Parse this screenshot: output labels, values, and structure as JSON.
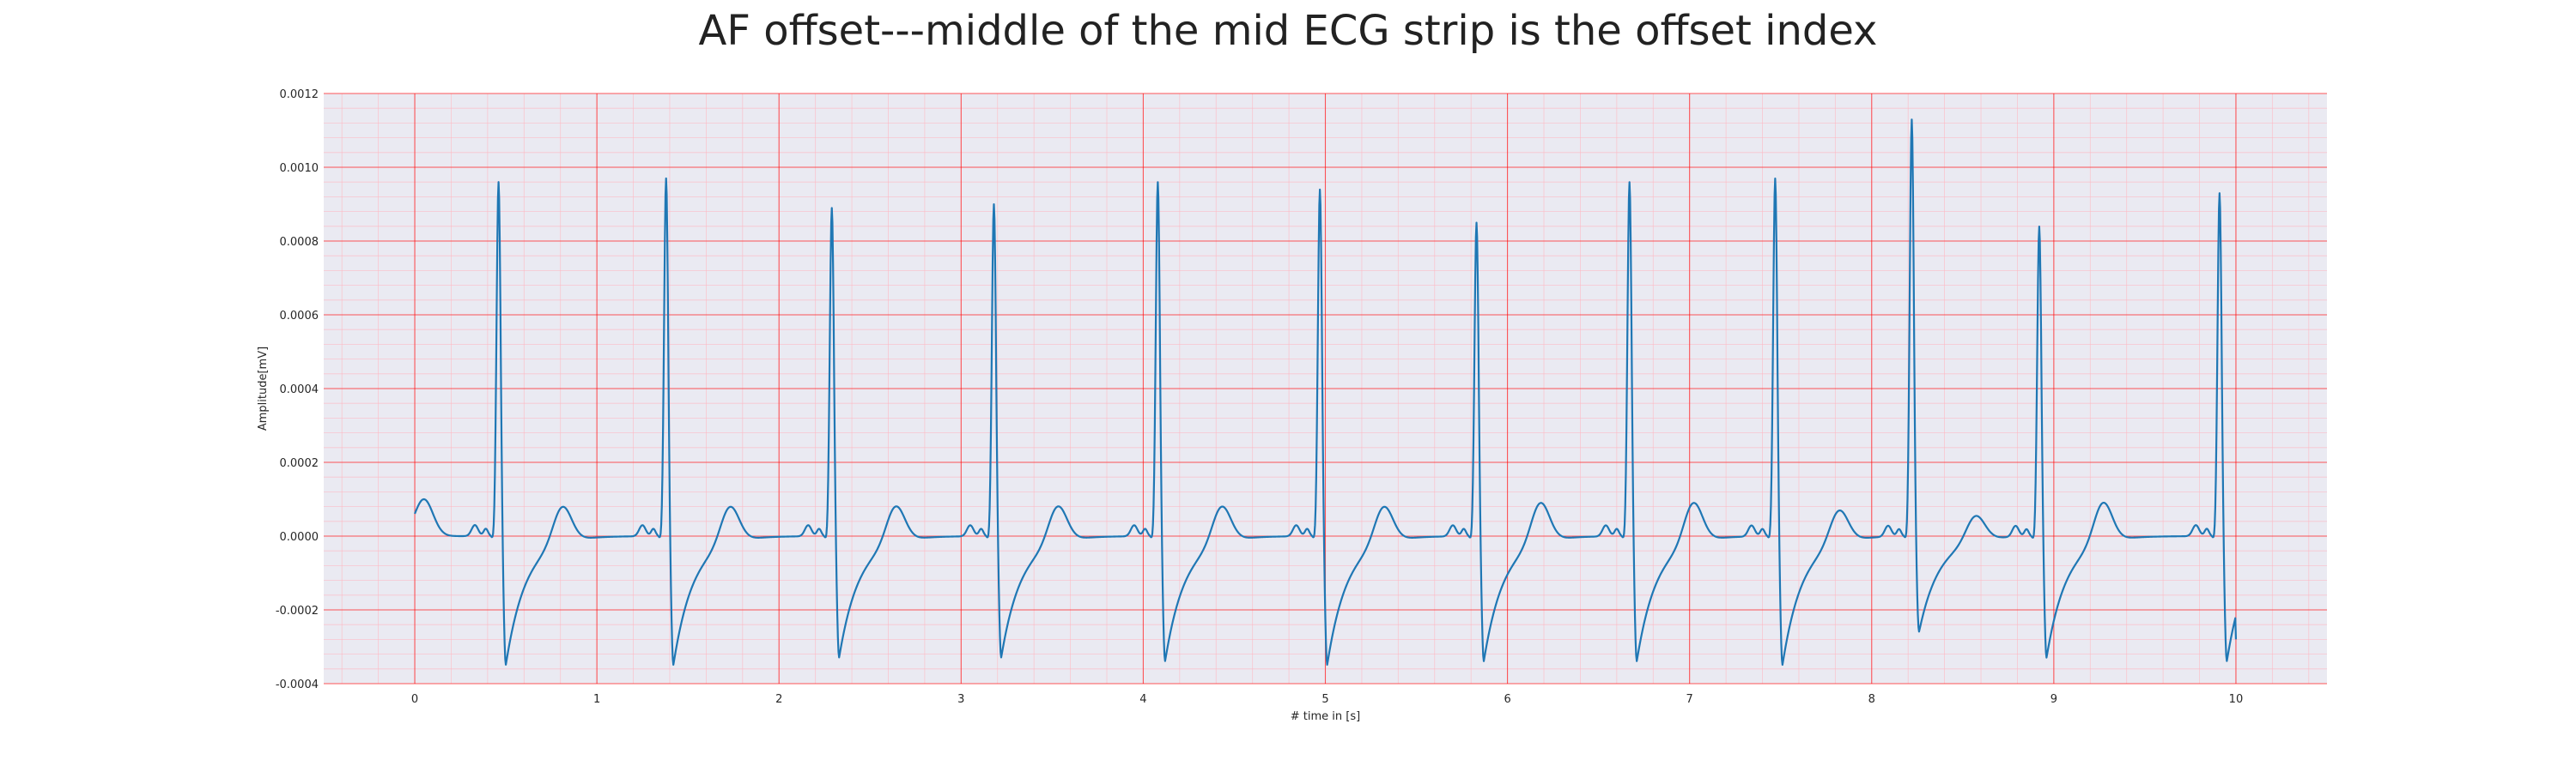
{
  "chart_data": {
    "type": "line",
    "title": "AF offset---middle of the mid ECG strip is the offset index",
    "xlabel": "# time in [s]",
    "ylabel": "Amplitude[mV]",
    "xlim": [
      -0.5,
      10.5
    ],
    "ylim": [
      -0.0004,
      0.0012
    ],
    "x_ticks": [
      0,
      1,
      2,
      3,
      4,
      5,
      6,
      7,
      8,
      9,
      10
    ],
    "x_tick_labels": [
      "0",
      "1",
      "2",
      "3",
      "4",
      "5",
      "6",
      "7",
      "8",
      "9",
      "10"
    ],
    "y_ticks": [
      -0.0004,
      -0.0002,
      0.0,
      0.0002,
      0.0004,
      0.0006,
      0.0008,
      0.001,
      0.0012
    ],
    "y_tick_labels": [
      "-0.0004",
      "-0.0002",
      "0.0000",
      "0.0002",
      "0.0004",
      "0.0006",
      "0.0008",
      "0.0010",
      "0.0012"
    ],
    "grid": "major and minor",
    "background_color": "#eaeaf2",
    "major_grid_color": "#ff0000",
    "minor_grid_color": "#ffb6c1",
    "line_color": "#1f77b4",
    "x_start": 0,
    "x_end": 10,
    "beats": [
      {
        "r_time": 0.46,
        "r_amp": 0.00096,
        "s_amp": -0.00035,
        "t_amp": 0.0001
      },
      {
        "r_time": 1.38,
        "r_amp": 0.00097,
        "s_amp": -0.00035,
        "t_amp": 0.0001
      },
      {
        "r_time": 2.29,
        "r_amp": 0.00089,
        "s_amp": -0.00033,
        "t_amp": 0.0001
      },
      {
        "r_time": 3.18,
        "r_amp": 0.0009,
        "s_amp": -0.00033,
        "t_amp": 0.0001
      },
      {
        "r_time": 4.08,
        "r_amp": 0.00096,
        "s_amp": -0.00034,
        "t_amp": 0.0001
      },
      {
        "r_time": 4.97,
        "r_amp": 0.00094,
        "s_amp": -0.00035,
        "t_amp": 0.0001
      },
      {
        "r_time": 5.83,
        "r_amp": 0.00085,
        "s_amp": -0.00034,
        "t_amp": 0.00011
      },
      {
        "r_time": 6.67,
        "r_amp": 0.00096,
        "s_amp": -0.00034,
        "t_amp": 0.00011
      },
      {
        "r_time": 7.47,
        "r_amp": 0.00097,
        "s_amp": -0.00035,
        "t_amp": 9e-05
      },
      {
        "r_time": 8.22,
        "r_amp": 0.00113,
        "s_amp": -0.00026,
        "t_amp": 7e-05
      },
      {
        "r_time": 8.92,
        "r_amp": 0.00084,
        "s_amp": -0.00033,
        "t_amp": 0.00011
      },
      {
        "r_time": 9.91,
        "r_amp": 0.00093,
        "s_amp": -0.00034,
        "t_amp": 0.0
      }
    ],
    "start_t_wave": {
      "time": 0.05,
      "amp": 0.0001
    },
    "end_amp": -0.00028
  }
}
